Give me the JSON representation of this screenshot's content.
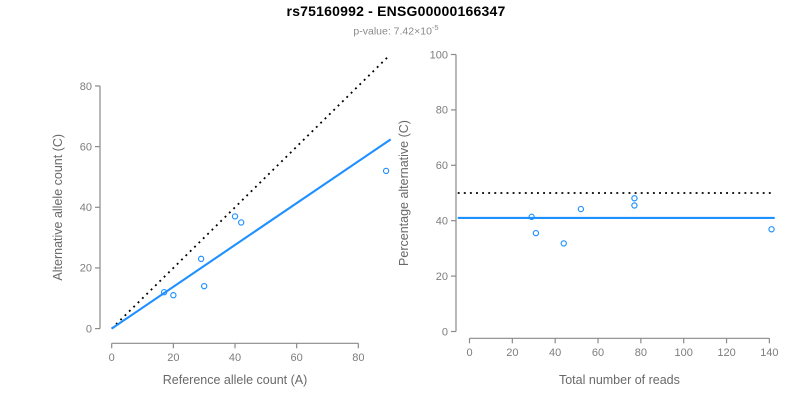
{
  "figure": {
    "title": "rs75160992 - ENSG00000166347",
    "pvalue_label": "p-value: 7.42×10",
    "pvalue_exponent": "-5"
  },
  "colors": {
    "blue": "#1E90FF",
    "black": "#000000",
    "axis_line": "#8a8a8a",
    "tick_text": "#7d7d7d",
    "label_text": "#696969",
    "title_text": "#000000",
    "subtitle_text": "#8a8a8a",
    "point_stroke": "#1E90FF"
  },
  "chart_data": [
    {
      "type": "scatter",
      "name": "counts-scatter-plot",
      "xlabel": "Reference allele count (A)",
      "ylabel": "Alternative allele count (C)",
      "xticks": [
        0,
        20,
        40,
        60,
        80
      ],
      "yticks": [
        0,
        20,
        40,
        60,
        80
      ],
      "xlim": [
        0,
        90
      ],
      "ylim": [
        0,
        90
      ],
      "grid": false,
      "points": [
        [
          17,
          12
        ],
        [
          20,
          11
        ],
        [
          29,
          23
        ],
        [
          30,
          14
        ],
        [
          40,
          37
        ],
        [
          42,
          35
        ],
        [
          89,
          52
        ]
      ],
      "lines": [
        {
          "name": "identity-line",
          "style": "dotted",
          "color": "black",
          "from": [
            0,
            0
          ],
          "to": [
            90,
            90
          ]
        },
        {
          "name": "fit-line",
          "style": "solid",
          "color": "blue",
          "from": [
            0,
            0
          ],
          "to": [
            90.5,
            62.4
          ]
        }
      ]
    },
    {
      "type": "scatter",
      "name": "percentage-scatter-plot",
      "xlabel": "Total number of reads",
      "ylabel": "Percentage alternative (C)",
      "xticks": [
        0,
        20,
        40,
        60,
        80,
        100,
        120,
        140
      ],
      "yticks": [
        0,
        20,
        40,
        60,
        80,
        100
      ],
      "xlim": [
        0,
        142
      ],
      "ylim": [
        0,
        100
      ],
      "grid": false,
      "points": [
        [
          29,
          41.4
        ],
        [
          31,
          35.5
        ],
        [
          44,
          31.8
        ],
        [
          52,
          44.2
        ],
        [
          77,
          45.5
        ],
        [
          77,
          48.1
        ],
        [
          141,
          36.9
        ]
      ],
      "lines": [
        {
          "name": "fifty-percent-line",
          "style": "dotted",
          "color": "black",
          "from": [
            -5.5,
            50
          ],
          "to": [
            141.5,
            50
          ]
        },
        {
          "name": "mean-percentage-line",
          "style": "solid",
          "color": "blue",
          "from": [
            -5.5,
            41
          ],
          "to": [
            142.5,
            41
          ]
        }
      ]
    }
  ]
}
